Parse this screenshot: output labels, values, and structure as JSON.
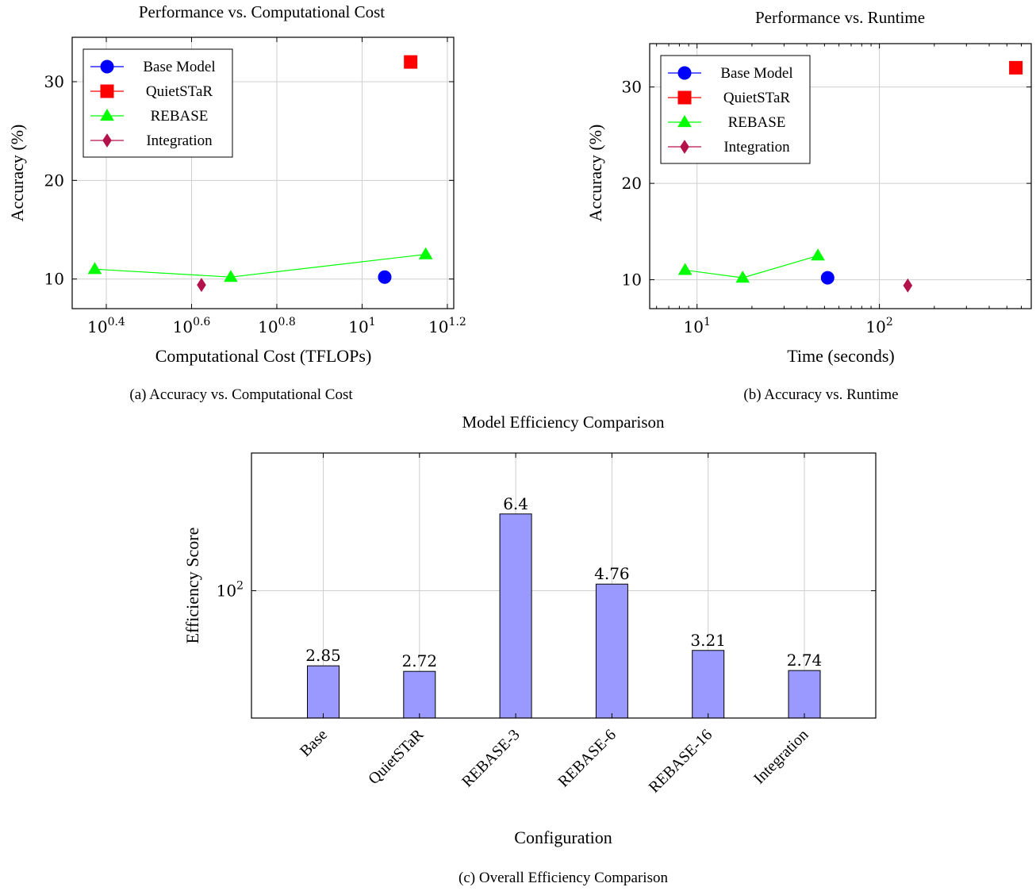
{
  "chart_data": [
    {
      "type": "scatter",
      "title": "Performance vs. Computational Cost",
      "xlabel": "Computational Cost (TFLOPs)",
      "ylabel": "Accuracy (%)",
      "caption": "(a) Accuracy vs. Computational Cost",
      "xscale": "log",
      "ylim": [
        7,
        34.5
      ],
      "xticks": [
        {
          "value": 2.5119,
          "base": "10",
          "sup": "0.4"
        },
        {
          "value": 3.9811,
          "base": "10",
          "sup": "0.6"
        },
        {
          "value": 6.3096,
          "base": "10",
          "sup": "0.8"
        },
        {
          "value": 10,
          "base": "10",
          "sup": "1"
        },
        {
          "value": 15.849,
          "base": "10",
          "sup": "1.2"
        }
      ],
      "yticks": [
        10,
        20,
        30
      ],
      "grid": true,
      "legend_position": "top-left",
      "series": [
        {
          "name": "Base Model",
          "color": "#0000ff",
          "marker": "circle",
          "x": [
            11.3
          ],
          "y": [
            10.2
          ]
        },
        {
          "name": "QuietSTaR",
          "color": "#ff0000",
          "marker": "square",
          "x": [
            13.0
          ],
          "y": [
            32.0
          ]
        },
        {
          "name": "REBASE",
          "color": "#00ff00",
          "marker": "triangle",
          "x": [
            2.36,
            4.92,
            14.1
          ],
          "y": [
            11.0,
            10.2,
            12.5
          ]
        },
        {
          "name": "Integration",
          "color": "#b3124a",
          "marker": "diamond",
          "x": [
            4.2
          ],
          "y": [
            9.4
          ]
        }
      ]
    },
    {
      "type": "scatter",
      "title": "Performance vs. Runtime",
      "xlabel": "Time (seconds)",
      "ylabel": "Accuracy (%)",
      "caption": "(b) Accuracy vs. Runtime",
      "xscale": "log",
      "ylim": [
        7,
        34.5
      ],
      "xticks": [
        {
          "value": 10,
          "base": "10",
          "sup": "1"
        },
        {
          "value": 100,
          "base": "10",
          "sup": "2"
        }
      ],
      "yticks": [
        10,
        20,
        30
      ],
      "grid": true,
      "legend_position": "top-left",
      "series": [
        {
          "name": "Base Model",
          "color": "#0000ff",
          "marker": "circle",
          "x": [
            52
          ],
          "y": [
            10.2
          ]
        },
        {
          "name": "QuietSTaR",
          "color": "#ff0000",
          "marker": "square",
          "x": [
            560
          ],
          "y": [
            32.0
          ]
        },
        {
          "name": "REBASE",
          "color": "#00ff00",
          "marker": "triangle",
          "x": [
            8.6,
            17.8,
            46
          ],
          "y": [
            11.0,
            10.2,
            12.5
          ]
        },
        {
          "name": "Integration",
          "color": "#b3124a",
          "marker": "diamond",
          "x": [
            143
          ],
          "y": [
            9.4
          ]
        }
      ]
    },
    {
      "type": "bar",
      "title": "Model Efficiency Comparison",
      "xlabel": "Configuration",
      "ylabel": "Efficiency Score",
      "caption": "(c) Overall Efficiency Comparison",
      "yscale": "log",
      "categories": [
        "Base",
        "QuietSTaR",
        "REBASE-3",
        "REBASE-6",
        "REBASE-16",
        "Integration"
      ],
      "values": [
        2.85,
        2.72,
        6.4,
        4.76,
        3.21,
        2.74
      ],
      "value_labels": [
        "2.85",
        "2.72",
        "6.4",
        "4.76",
        "3.21",
        "2.74"
      ],
      "yticks": [
        {
          "value": 100,
          "base": "10",
          "sup": "2"
        }
      ],
      "bar_color": "#9999ff",
      "grid": true
    }
  ]
}
